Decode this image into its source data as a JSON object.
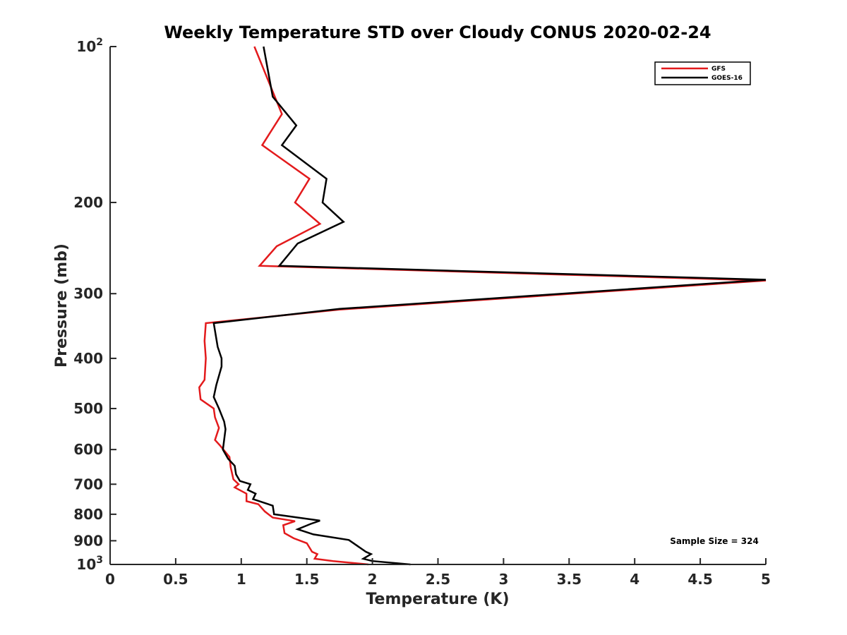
{
  "chart_data": {
    "type": "line",
    "title": "Weekly Temperature STD over Cloudy CONUS 2020-02-24",
    "xlabel": "Temperature (K)",
    "ylabel": "Pressure (mb)",
    "xlim": [
      0,
      5
    ],
    "ylim": [
      100,
      1000
    ],
    "y_scale": "log",
    "y_reversed": true,
    "grid": false,
    "legend_position": "top-right",
    "x_ticks": [
      0,
      0.5,
      1,
      1.5,
      2,
      2.5,
      3,
      3.5,
      4,
      4.5,
      5
    ],
    "x_tick_labels": [
      "0",
      "0.5",
      "1",
      "1.5",
      "2",
      "2.5",
      "3",
      "3.5",
      "4",
      "4.5",
      "5"
    ],
    "y_ticks": [
      {
        "value": 100,
        "base": "10",
        "exp": "2"
      },
      {
        "value": 200,
        "label": "200"
      },
      {
        "value": 300,
        "label": "300"
      },
      {
        "value": 400,
        "label": "400"
      },
      {
        "value": 500,
        "label": "500"
      },
      {
        "value": 600,
        "label": "600"
      },
      {
        "value": 700,
        "label": "700"
      },
      {
        "value": 800,
        "label": "800"
      },
      {
        "value": 900,
        "label": "900"
      },
      {
        "value": 1000,
        "base": "10",
        "exp": "3"
      }
    ],
    "annotation": "Sample Size = 324",
    "series": [
      {
        "name": "GFS",
        "color": "#e31a1c",
        "points": [
          [
            1.1,
            100
          ],
          [
            1.31,
            135
          ],
          [
            1.16,
            155
          ],
          [
            1.52,
            180
          ],
          [
            1.41,
            200
          ],
          [
            1.6,
            220
          ],
          [
            1.27,
            243
          ],
          [
            1.14,
            265
          ],
          [
            5.0,
            283
          ],
          [
            1.75,
            322
          ],
          [
            0.73,
            342
          ],
          [
            0.72,
            370
          ],
          [
            0.73,
            400
          ],
          [
            0.72,
            440
          ],
          [
            0.68,
            455
          ],
          [
            0.69,
            480
          ],
          [
            0.79,
            500
          ],
          [
            0.8,
            520
          ],
          [
            0.83,
            545
          ],
          [
            0.8,
            575
          ],
          [
            0.84,
            590
          ],
          [
            0.91,
            620
          ],
          [
            0.92,
            650
          ],
          [
            0.94,
            685
          ],
          [
            0.98,
            700
          ],
          [
            0.95,
            710
          ],
          [
            1.04,
            730
          ],
          [
            1.04,
            755
          ],
          [
            1.13,
            765
          ],
          [
            1.18,
            790
          ],
          [
            1.24,
            812
          ],
          [
            1.41,
            825
          ],
          [
            1.32,
            840
          ],
          [
            1.33,
            870
          ],
          [
            1.4,
            890
          ],
          [
            1.5,
            910
          ],
          [
            1.54,
            945
          ],
          [
            1.58,
            955
          ],
          [
            1.56,
            975
          ],
          [
            1.7,
            985
          ],
          [
            1.97,
            1000
          ]
        ]
      },
      {
        "name": "GOES-16",
        "color": "#000000",
        "points": [
          [
            1.17,
            100
          ],
          [
            1.24,
            125
          ],
          [
            1.42,
            142
          ],
          [
            1.31,
            155
          ],
          [
            1.65,
            180
          ],
          [
            1.62,
            200
          ],
          [
            1.78,
            218
          ],
          [
            1.43,
            240
          ],
          [
            1.29,
            265
          ],
          [
            5.0,
            282
          ],
          [
            1.75,
            321
          ],
          [
            0.79,
            342
          ],
          [
            0.82,
            380
          ],
          [
            0.85,
            400
          ],
          [
            0.85,
            415
          ],
          [
            0.81,
            450
          ],
          [
            0.79,
            475
          ],
          [
            0.83,
            500
          ],
          [
            0.87,
            530
          ],
          [
            0.88,
            548
          ],
          [
            0.86,
            600
          ],
          [
            0.9,
            625
          ],
          [
            0.95,
            645
          ],
          [
            0.96,
            670
          ],
          [
            0.99,
            690
          ],
          [
            1.07,
            700
          ],
          [
            1.05,
            718
          ],
          [
            1.11,
            730
          ],
          [
            1.09,
            748
          ],
          [
            1.24,
            770
          ],
          [
            1.25,
            800
          ],
          [
            1.6,
            823
          ],
          [
            1.53,
            835
          ],
          [
            1.43,
            855
          ],
          [
            1.55,
            875
          ],
          [
            1.82,
            897
          ],
          [
            1.95,
            945
          ],
          [
            1.99,
            955
          ],
          [
            1.93,
            975
          ],
          [
            2.0,
            985
          ],
          [
            2.29,
            1000
          ]
        ]
      }
    ]
  }
}
